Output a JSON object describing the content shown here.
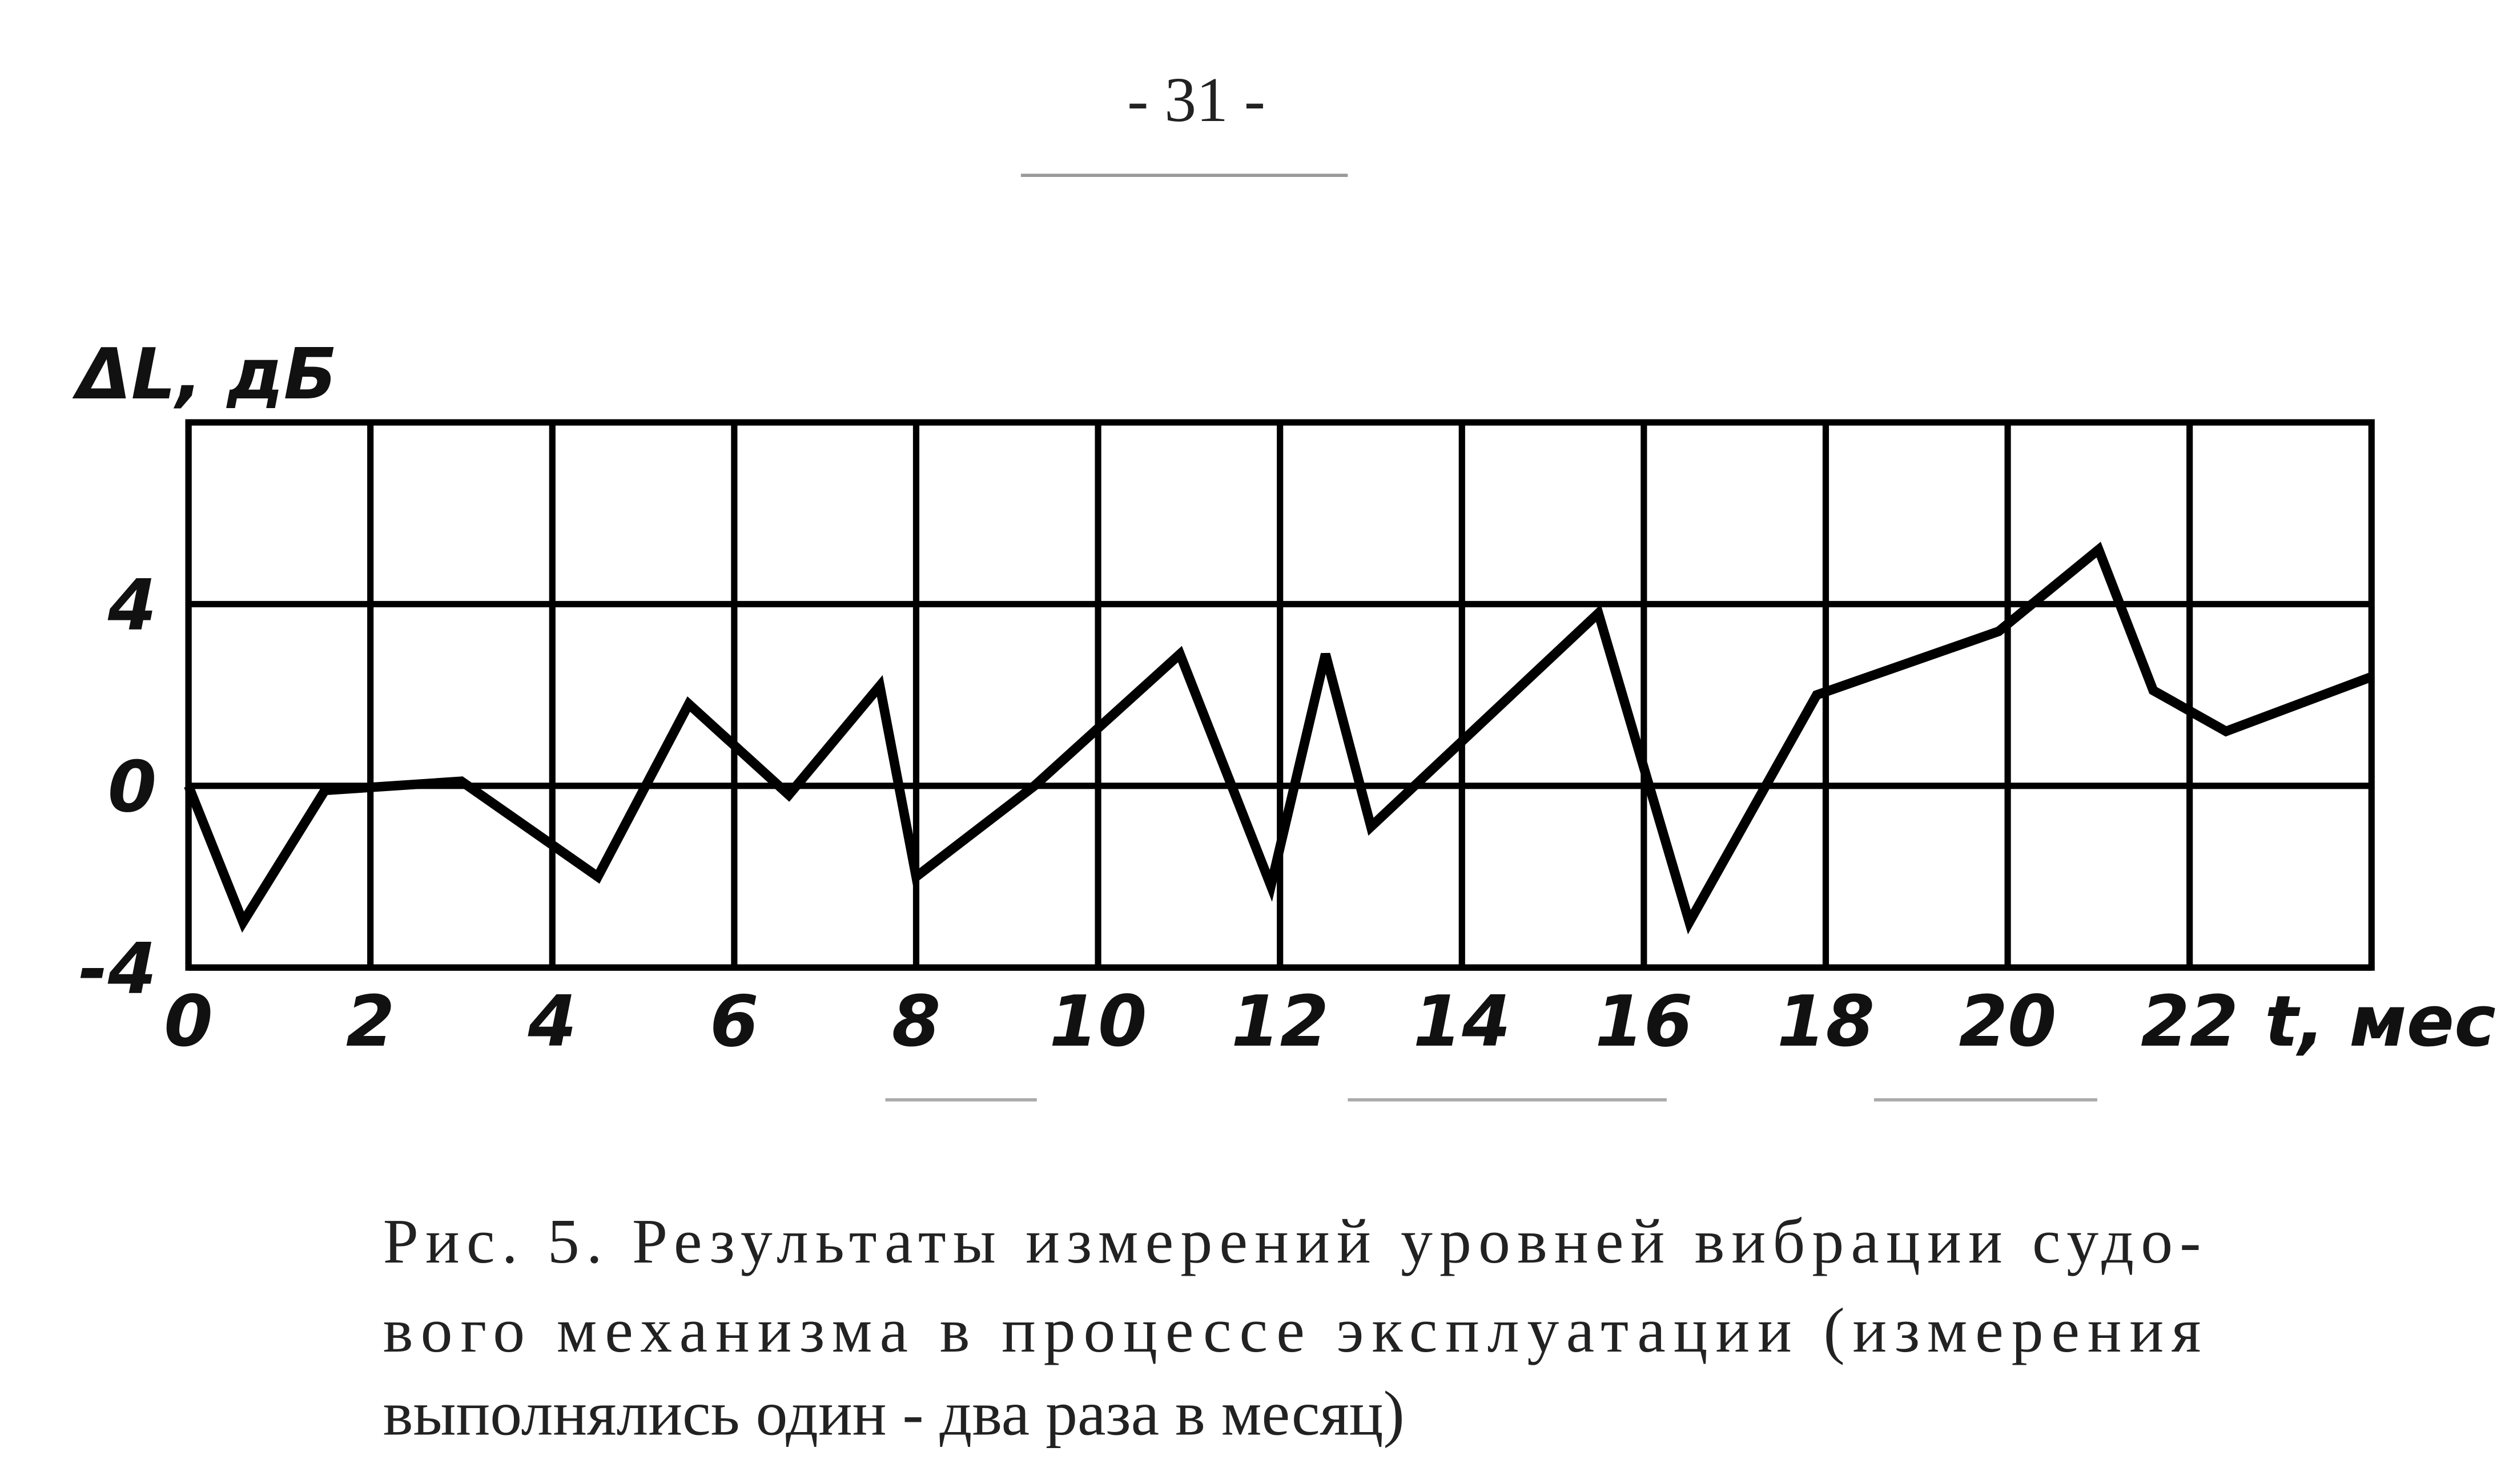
{
  "page_number": "- 31 -",
  "chart_data": {
    "type": "line",
    "ylabel": "ΔL, дБ",
    "xlabel": "t, мес",
    "x": [
      0,
      0.6,
      1.5,
      3.0,
      4.5,
      5.5,
      6.6,
      7.6,
      8.0,
      9.3,
      10.9,
      11.9,
      12.5,
      13.0,
      15.5,
      16.5,
      17.9,
      19.9,
      21.0,
      21.6,
      22.4,
      24
    ],
    "values": [
      0,
      -3.0,
      -0.1,
      0.1,
      -2.0,
      1.8,
      -0.2,
      2.2,
      -2.0,
      0,
      2.9,
      -2.2,
      2.9,
      -0.9,
      3.8,
      -3.0,
      2.0,
      3.4,
      5.2,
      2.1,
      1.2,
      2.4
    ],
    "color": "#000000",
    "xlim": [
      0,
      24
    ],
    "ylim": [
      -4,
      8
    ],
    "xticks": [
      0,
      2,
      4,
      6,
      8,
      10,
      12,
      14,
      16,
      18,
      20,
      22
    ],
    "yticks": [
      -4,
      0,
      4
    ],
    "grid": true
  },
  "caption": [
    "Рис. 5. Результаты измерений уровней вибрации судо-",
    "вого механизма в процессе эксплуатации (измерения",
    "выполнялись один - два раза в месяц)"
  ]
}
